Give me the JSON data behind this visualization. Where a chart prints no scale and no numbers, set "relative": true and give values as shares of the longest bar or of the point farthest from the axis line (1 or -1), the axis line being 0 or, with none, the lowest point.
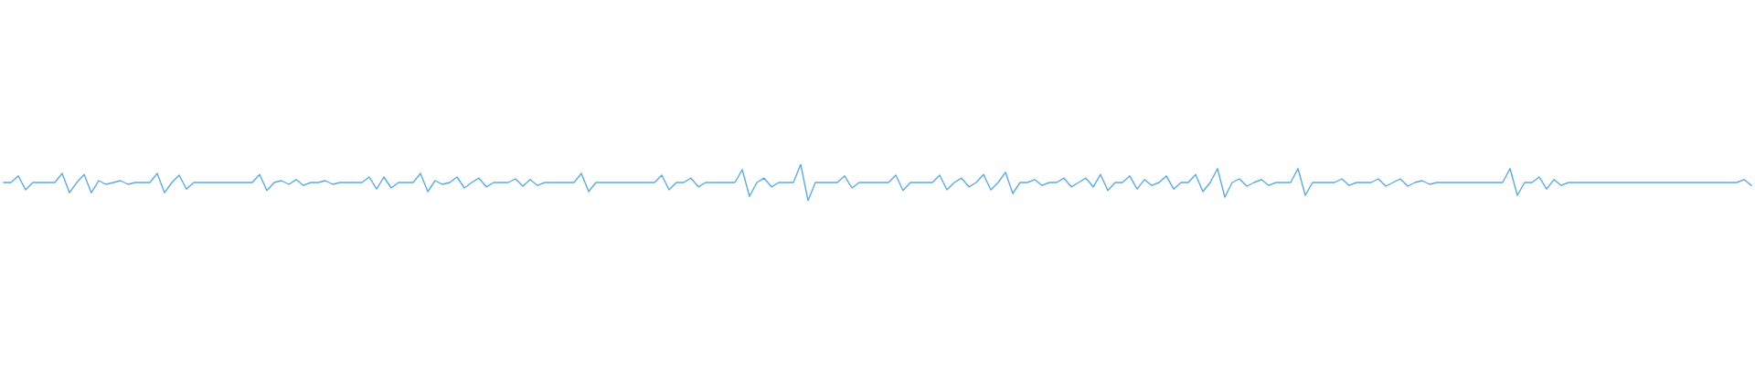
{
  "chart_data": {
    "type": "line",
    "relative": true,
    "tick_labels": false,
    "categories": [
      null,
      null,
      null,
      null,
      null,
      null,
      null,
      null,
      null,
      null,
      null,
      null,
      null,
      null,
      null,
      null,
      null,
      null,
      null,
      null,
      null,
      null,
      null,
      null,
      null,
      null,
      null,
      null,
      null,
      null,
      null,
      null,
      null,
      null,
      null,
      null,
      null,
      null,
      null,
      null,
      null,
      null,
      null,
      null,
      null,
      null,
      null,
      null,
      null,
      null,
      null,
      null,
      null,
      null,
      null,
      null,
      null,
      null,
      null,
      null,
      null,
      null,
      null,
      null,
      null,
      null,
      null,
      null,
      null,
      null,
      null,
      null,
      null,
      null,
      null,
      null,
      null,
      null,
      null,
      null,
      null,
      null,
      null,
      null,
      null,
      null,
      null,
      null,
      null,
      null,
      null,
      null,
      null,
      null,
      null,
      null,
      null,
      null,
      null,
      null,
      null,
      null,
      null,
      null,
      null,
      null,
      null,
      null,
      null,
      null,
      null,
      null,
      null,
      null,
      null,
      null,
      null,
      null,
      null,
      null,
      null,
      null,
      null,
      null,
      null,
      null,
      null,
      null,
      null,
      null,
      null,
      null,
      null,
      null,
      null,
      null,
      null,
      null,
      null,
      null,
      null,
      null,
      null,
      null,
      null,
      null,
      null,
      null,
      null,
      null,
      null,
      null,
      null,
      null,
      null,
      null,
      null,
      null,
      null,
      null,
      null,
      null,
      null,
      null,
      null,
      null,
      null,
      null,
      null,
      null,
      null,
      null,
      null,
      null,
      null,
      null,
      null,
      null,
      null,
      null,
      null,
      null,
      null,
      null,
      null,
      null,
      null,
      null,
      null,
      null,
      null,
      null,
      null,
      null,
      null,
      null,
      null,
      null,
      null,
      null,
      null,
      null,
      null,
      null,
      null,
      null,
      null,
      null,
      null,
      null,
      null,
      null,
      null,
      null,
      null,
      null,
      null,
      null,
      null,
      null,
      null,
      null,
      null,
      null,
      null,
      null,
      null,
      null,
      null,
      null,
      null,
      null,
      null,
      null,
      null,
      null,
      null,
      null,
      null,
      null
    ],
    "series": [
      {
        "color": "#5aaae0",
        "values": [
          0.5,
          0.5,
          0.68,
          0.3,
          0.5,
          0.5,
          0.5,
          0.5,
          0.75,
          0.22,
          0.5,
          0.72,
          0.22,
          0.55,
          0.45,
          0.5,
          0.55,
          0.45,
          0.5,
          0.5,
          0.5,
          0.75,
          0.22,
          0.5,
          0.7,
          0.32,
          0.5,
          0.5,
          0.5,
          0.5,
          0.5,
          0.5,
          0.5,
          0.5,
          0.5,
          0.72,
          0.28,
          0.5,
          0.55,
          0.45,
          0.58,
          0.42,
          0.5,
          0.5,
          0.55,
          0.45,
          0.5,
          0.5,
          0.5,
          0.5,
          0.65,
          0.32,
          0.65,
          0.35,
          0.5,
          0.5,
          0.5,
          0.75,
          0.25,
          0.55,
          0.45,
          0.5,
          0.65,
          0.35,
          0.5,
          0.62,
          0.38,
          0.5,
          0.5,
          0.5,
          0.6,
          0.4,
          0.58,
          0.42,
          0.5,
          0.5,
          0.5,
          0.5,
          0.5,
          0.75,
          0.25,
          0.5,
          0.5,
          0.5,
          0.5,
          0.5,
          0.5,
          0.5,
          0.5,
          0.5,
          0.7,
          0.3,
          0.5,
          0.5,
          0.62,
          0.38,
          0.5,
          0.5,
          0.5,
          0.5,
          0.5,
          0.85,
          0.12,
          0.5,
          0.62,
          0.38,
          0.5,
          0.5,
          0.5,
          1,
          0,
          0.5,
          0.5,
          0.5,
          0.5,
          0.68,
          0.35,
          0.5,
          0.5,
          0.5,
          0.5,
          0.5,
          0.7,
          0.28,
          0.5,
          0.5,
          0.5,
          0.5,
          0.7,
          0.3,
          0.5,
          0.62,
          0.38,
          0.5,
          0.72,
          0.3,
          0.5,
          0.78,
          0.2,
          0.5,
          0.5,
          0.58,
          0.42,
          0.5,
          0.5,
          0.62,
          0.38,
          0.5,
          0.62,
          0.38,
          0.72,
          0.28,
          0.5,
          0.5,
          0.68,
          0.32,
          0.58,
          0.42,
          0.5,
          0.68,
          0.32,
          0.5,
          0.5,
          0.72,
          0.25,
          0.5,
          0.88,
          0.1,
          0.5,
          0.6,
          0.4,
          0.5,
          0.58,
          0.42,
          0.5,
          0.5,
          0.5,
          0.88,
          0.15,
          0.5,
          0.5,
          0.5,
          0.5,
          0.6,
          0.42,
          0.5,
          0.5,
          0.5,
          0.6,
          0.4,
          0.5,
          0.6,
          0.4,
          0.5,
          0.55,
          0.45,
          0.5,
          0.5,
          0.5,
          0.5,
          0.5,
          0.5,
          0.5,
          0.5,
          0.5,
          0.5,
          0.88,
          0.15,
          0.5,
          0.5,
          0.65,
          0.32,
          0.58,
          0.42,
          0.5,
          0.5,
          0.5,
          0.5,
          0.5,
          0.5,
          0.5,
          0.5,
          0.5,
          0.5,
          0.5,
          0.5,
          0.5,
          0.5,
          0.5,
          0.5,
          0.5,
          0.5,
          0.5,
          0.5,
          0.5,
          0.5,
          0.5,
          0.5,
          0.58,
          0.42
        ]
      }
    ]
  }
}
